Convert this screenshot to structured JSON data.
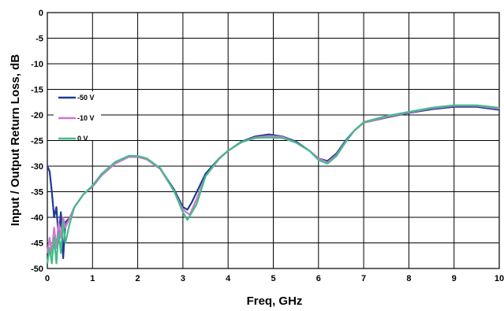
{
  "chart_data": {
    "type": "line",
    "title": "",
    "xlabel": "Freq, GHz",
    "ylabel": "Input / Output Return Loss, dB",
    "xlim": [
      0,
      10
    ],
    "ylim": [
      -50,
      0
    ],
    "xticks": [
      "0",
      "1",
      "2",
      "3",
      "4",
      "5",
      "6",
      "7",
      "8",
      "9",
      "10"
    ],
    "yticks": [
      "0",
      "-5",
      "-10",
      "-15",
      "-20",
      "-25",
      "-30",
      "-35",
      "-40",
      "-45",
      "-50"
    ],
    "grid": true,
    "legend_position": "left",
    "series": [
      {
        "name": "-50 V",
        "color": "#1f3a93",
        "points": [
          [
            0,
            -30
          ],
          [
            0.05,
            -31
          ],
          [
            0.1,
            -35
          ],
          [
            0.15,
            -40
          ],
          [
            0.2,
            -38
          ],
          [
            0.25,
            -44
          ],
          [
            0.3,
            -39
          ],
          [
            0.35,
            -48
          ],
          [
            0.4,
            -41
          ],
          [
            0.5,
            -40
          ],
          [
            0.6,
            -38
          ],
          [
            0.8,
            -35.5
          ],
          [
            1.0,
            -34
          ],
          [
            1.2,
            -31.8
          ],
          [
            1.5,
            -29.5
          ],
          [
            1.8,
            -28.2
          ],
          [
            2.0,
            -28.2
          ],
          [
            2.2,
            -28.6
          ],
          [
            2.5,
            -30.5
          ],
          [
            2.8,
            -34.5
          ],
          [
            3.0,
            -38
          ],
          [
            3.1,
            -38.5
          ],
          [
            3.2,
            -37
          ],
          [
            3.5,
            -31.5
          ],
          [
            3.8,
            -28.5
          ],
          [
            4.0,
            -27
          ],
          [
            4.3,
            -25.2
          ],
          [
            4.6,
            -24.2
          ],
          [
            4.9,
            -23.8
          ],
          [
            5.2,
            -24.2
          ],
          [
            5.5,
            -25.2
          ],
          [
            5.8,
            -27
          ],
          [
            6.0,
            -28.5
          ],
          [
            6.2,
            -29
          ],
          [
            6.4,
            -27.5
          ],
          [
            6.6,
            -25
          ],
          [
            6.8,
            -23
          ],
          [
            7.0,
            -21.5
          ],
          [
            7.5,
            -20.5
          ],
          [
            8.0,
            -19.6
          ],
          [
            8.5,
            -18.9
          ],
          [
            9.0,
            -18.4
          ],
          [
            9.5,
            -18.4
          ],
          [
            10.0,
            -19
          ]
        ]
      },
      {
        "name": "-10 V",
        "color": "#cc77cc",
        "points": [
          [
            0,
            -47
          ],
          [
            0.05,
            -44
          ],
          [
            0.1,
            -47
          ],
          [
            0.15,
            -42
          ],
          [
            0.2,
            -46
          ],
          [
            0.25,
            -41
          ],
          [
            0.3,
            -44
          ],
          [
            0.35,
            -40
          ],
          [
            0.4,
            -42
          ],
          [
            0.5,
            -40
          ],
          [
            0.6,
            -38
          ],
          [
            0.8,
            -35.5
          ],
          [
            1.0,
            -34
          ],
          [
            1.2,
            -31.8
          ],
          [
            1.5,
            -29.5
          ],
          [
            1.8,
            -28.2
          ],
          [
            2.0,
            -28.2
          ],
          [
            2.2,
            -28.7
          ],
          [
            2.5,
            -30.6
          ],
          [
            2.8,
            -34.8
          ],
          [
            3.0,
            -38.5
          ],
          [
            3.15,
            -39.5
          ],
          [
            3.3,
            -36.5
          ],
          [
            3.5,
            -32
          ],
          [
            3.8,
            -28.6
          ],
          [
            4.0,
            -27
          ],
          [
            4.3,
            -25.3
          ],
          [
            4.6,
            -24.4
          ],
          [
            4.9,
            -24.1
          ],
          [
            5.2,
            -24.3
          ],
          [
            5.5,
            -25.4
          ],
          [
            5.8,
            -27
          ],
          [
            6.0,
            -28.5
          ],
          [
            6.2,
            -29.3
          ],
          [
            6.4,
            -27.8
          ],
          [
            6.6,
            -25.2
          ],
          [
            6.8,
            -23
          ],
          [
            7.0,
            -21.5
          ],
          [
            7.5,
            -20.4
          ],
          [
            8.0,
            -19.5
          ],
          [
            8.5,
            -18.7
          ],
          [
            9.0,
            -18.2
          ],
          [
            9.5,
            -18.2
          ],
          [
            10.0,
            -18.8
          ]
        ]
      },
      {
        "name": "0 V",
        "color": "#44bb88",
        "points": [
          [
            0,
            -49
          ],
          [
            0.05,
            -46
          ],
          [
            0.1,
            -49
          ],
          [
            0.15,
            -44
          ],
          [
            0.2,
            -49
          ],
          [
            0.25,
            -43
          ],
          [
            0.3,
            -47
          ],
          [
            0.35,
            -41
          ],
          [
            0.4,
            -45
          ],
          [
            0.5,
            -41
          ],
          [
            0.6,
            -38
          ],
          [
            0.8,
            -35.5
          ],
          [
            1.0,
            -33.8
          ],
          [
            1.2,
            -31.5
          ],
          [
            1.5,
            -29.2
          ],
          [
            1.8,
            -28
          ],
          [
            2.0,
            -28
          ],
          [
            2.2,
            -28.5
          ],
          [
            2.5,
            -30.4
          ],
          [
            2.8,
            -34.8
          ],
          [
            3.0,
            -39
          ],
          [
            3.1,
            -40.5
          ],
          [
            3.3,
            -37.5
          ],
          [
            3.5,
            -32
          ],
          [
            3.8,
            -28.5
          ],
          [
            4.0,
            -27
          ],
          [
            4.3,
            -25.3
          ],
          [
            4.6,
            -24.5
          ],
          [
            4.9,
            -24.4
          ],
          [
            5.2,
            -24.5
          ],
          [
            5.5,
            -25.4
          ],
          [
            5.8,
            -27
          ],
          [
            6.0,
            -28.8
          ],
          [
            6.2,
            -29.5
          ],
          [
            6.4,
            -28
          ],
          [
            6.6,
            -25.3
          ],
          [
            6.8,
            -23
          ],
          [
            7.0,
            -21.4
          ],
          [
            7.5,
            -20.2
          ],
          [
            8.0,
            -19.4
          ],
          [
            8.5,
            -18.6
          ],
          [
            9.0,
            -18.1
          ],
          [
            9.5,
            -18.1
          ],
          [
            10.0,
            -18.6
          ]
        ]
      }
    ]
  }
}
